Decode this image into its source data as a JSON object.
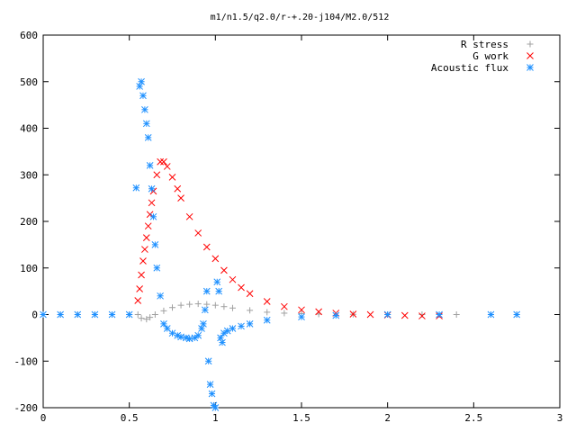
{
  "chart_data": {
    "type": "scatter",
    "title": "m1/n1.5/q2.0/r-+.20-j104/M2.0/512",
    "xlabel": "",
    "ylabel": "",
    "xlim": [
      0,
      3
    ],
    "ylim": [
      -200,
      600
    ],
    "x_ticks": [
      "0",
      "0.5",
      "1",
      "1.5",
      "2",
      "2.5",
      "3"
    ],
    "y_ticks": [
      "-200",
      "-100",
      "0",
      "100",
      "200",
      "300",
      "400",
      "500",
      "600"
    ],
    "grid": false,
    "legend_position": "top-right",
    "series": [
      {
        "name": "R stress",
        "marker": "plus",
        "color": "#a0a0a0",
        "x": [
          0.0,
          0.1,
          0.2,
          0.3,
          0.4,
          0.5,
          0.55,
          0.57,
          0.6,
          0.62,
          0.65,
          0.7,
          0.75,
          0.8,
          0.85,
          0.9,
          0.95,
          1.0,
          1.05,
          1.1,
          1.2,
          1.3,
          1.4,
          1.5,
          1.6,
          1.8,
          2.0,
          2.2,
          2.4,
          2.6,
          2.75
        ],
        "y": [
          0,
          0,
          0,
          0,
          0,
          0,
          0,
          -8,
          -10,
          -6,
          0,
          8,
          15,
          20,
          22,
          23,
          22,
          20,
          17,
          14,
          9,
          5,
          3,
          2,
          1,
          0.5,
          0,
          0,
          0,
          0,
          0
        ]
      },
      {
        "name": "G work",
        "marker": "x",
        "color": "#ff0000",
        "x": [
          0.55,
          0.56,
          0.57,
          0.58,
          0.59,
          0.6,
          0.61,
          0.62,
          0.63,
          0.64,
          0.66,
          0.68,
          0.7,
          0.72,
          0.75,
          0.78,
          0.8,
          0.85,
          0.9,
          0.95,
          1.0,
          1.05,
          1.1,
          1.15,
          1.2,
          1.3,
          1.4,
          1.5,
          1.6,
          1.7,
          1.8,
          1.9,
          2.0,
          2.1,
          2.2,
          2.3
        ],
        "y": [
          30,
          55,
          85,
          115,
          140,
          165,
          190,
          215,
          240,
          265,
          300,
          328,
          328,
          318,
          295,
          270,
          250,
          210,
          175,
          145,
          120,
          95,
          75,
          58,
          45,
          28,
          17,
          10,
          6,
          3,
          1,
          0,
          -1,
          -2,
          -3,
          -3
        ]
      },
      {
        "name": "Acoustic flux",
        "marker": "star",
        "color": "#1e90ff",
        "x": [
          0.0,
          0.1,
          0.2,
          0.3,
          0.4,
          0.5,
          0.54,
          0.56,
          0.57,
          0.58,
          0.59,
          0.6,
          0.61,
          0.62,
          0.63,
          0.64,
          0.65,
          0.66,
          0.68,
          0.7,
          0.72,
          0.75,
          0.78,
          0.8,
          0.83,
          0.85,
          0.88,
          0.9,
          0.92,
          0.93,
          0.94,
          0.95,
          0.96,
          0.97,
          0.98,
          0.99,
          1.0,
          1.01,
          1.02,
          1.03,
          1.04,
          1.05,
          1.07,
          1.1,
          1.15,
          1.2,
          1.3,
          1.5,
          1.7,
          2.0,
          2.3,
          2.6,
          2.75
        ],
        "y": [
          0,
          0,
          0,
          0,
          0,
          0,
          272,
          490,
          500,
          470,
          440,
          410,
          380,
          320,
          270,
          210,
          150,
          100,
          40,
          -20,
          -30,
          -40,
          -45,
          -48,
          -50,
          -52,
          -50,
          -45,
          -30,
          -20,
          10,
          50,
          -100,
          -150,
          -170,
          -195,
          -200,
          70,
          50,
          -50,
          -60,
          -40,
          -35,
          -30,
          -25,
          -20,
          -12,
          -5,
          -2,
          0,
          0,
          0,
          0
        ]
      }
    ]
  }
}
